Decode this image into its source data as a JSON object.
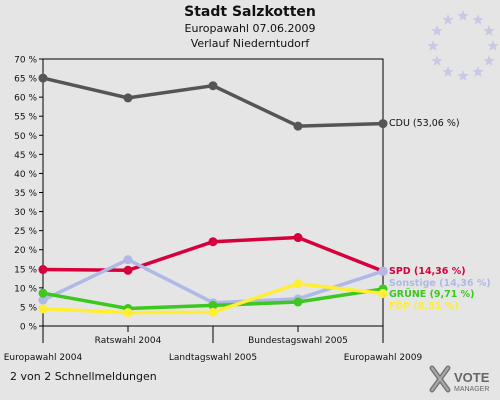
{
  "header": {
    "title": "Stadt Salzkotten",
    "subtitle1": "Europawahl 07.06.2009",
    "subtitle2": "Verlauf Niederntudorf"
  },
  "footer": {
    "note": "2 von 2 Schnellmeldungen"
  },
  "logo": {
    "line1": "VOTE",
    "line2": "MANAGER"
  },
  "chart_data": {
    "type": "line",
    "title": "Stadt Salzkotten",
    "x": [
      "Europawahl 2004",
      "Ratswahl 2004",
      "Landtagswahl 2005",
      "Bundestagswahl 2005",
      "Europawahl 2009"
    ],
    "yticks": [
      "0 %",
      "5 %",
      "10 %",
      "15 %",
      "20 %",
      "25 %",
      "30 %",
      "35 %",
      "40 %",
      "45 %",
      "50 %",
      "55 %",
      "60 %",
      "65 %",
      "70 %"
    ],
    "ylim": [
      0,
      70
    ],
    "grid": false,
    "legend_placement": "right",
    "series": [
      {
        "name": "CDU",
        "end_label": "CDU (53,06 %)",
        "color": "#555555",
        "values": [
          65.0,
          59.8,
          63.0,
          52.4,
          53.06
        ]
      },
      {
        "name": "SPD",
        "end_label": "SPD (14,36 %)",
        "color": "#d6003c",
        "values": [
          14.8,
          14.6,
          22.1,
          23.2,
          14.36
        ]
      },
      {
        "name": "Sonstige",
        "end_label": "Sonstige (14,36 %)",
        "color": "#b0b8e8",
        "values": [
          6.8,
          17.4,
          6.1,
          7.1,
          14.36
        ]
      },
      {
        "name": "GRÜNE",
        "end_label": "GRÜNE (9,71 %)",
        "color": "#3cc81e",
        "values": [
          8.6,
          4.6,
          5.4,
          6.3,
          9.71
        ]
      },
      {
        "name": "FDP",
        "end_label": "FDP (8,51 %)",
        "color": "#ffee33",
        "values": [
          4.5,
          3.5,
          3.6,
          11.1,
          8.51
        ]
      }
    ]
  }
}
